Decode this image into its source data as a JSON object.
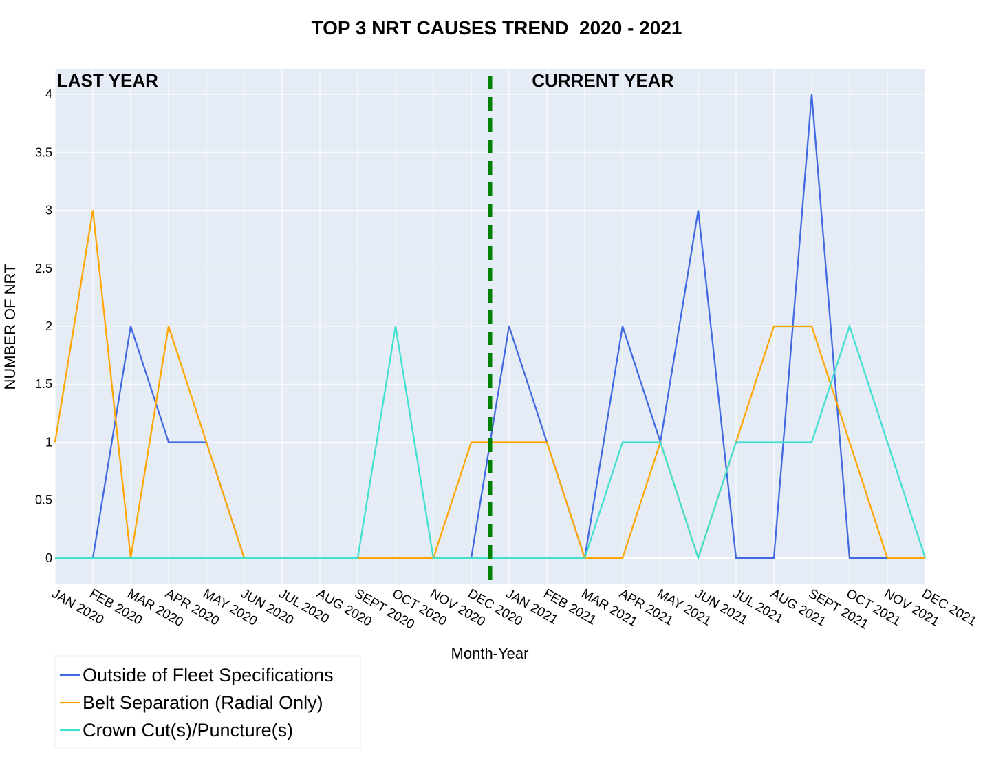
{
  "chart_data": {
    "type": "line",
    "title": "TOP 3 NRT CAUSES TREND  2020 - 2021",
    "xlabel": "Month-Year",
    "ylabel": "NUMBER OF NRT",
    "categories": [
      "JAN 2020",
      "FEB 2020",
      "MAR 2020",
      "APR 2020",
      "MAY 2020",
      "JUN 2020",
      "JUL 2020",
      "AUG 2020",
      "SEPT 2020",
      "OCT 2020",
      "NOV 2020",
      "DEC 2020",
      "JAN 2021",
      "FEB 2021",
      "MAR 2021",
      "APR 2021",
      "MAY 2021",
      "JUN 2021",
      "JUL 2021",
      "AUG 2021",
      "SEPT 2021",
      "OCT 2021",
      "NOV 2021",
      "DEC 2021"
    ],
    "ylim": [
      -0.22,
      4.22
    ],
    "yticks": [
      0,
      0.5,
      1,
      1.5,
      2,
      2.5,
      3,
      3.5,
      4
    ],
    "ytick_labels": [
      "0",
      "0.5",
      "1",
      "1.5",
      "2",
      "2.5",
      "3",
      "3.5",
      "4"
    ],
    "grid": true,
    "legend_position": "bottom-left",
    "series": [
      {
        "name": "Outside of Fleet Specifications",
        "color": "#4169e1",
        "values": [
          0,
          0,
          2,
          1,
          1,
          0,
          0,
          0,
          0,
          0,
          0,
          0,
          2,
          1,
          0,
          2,
          1,
          3,
          0,
          0,
          4,
          0,
          0,
          0
        ]
      },
      {
        "name": "Belt Separation (Radial Only)",
        "color": "#ffa500",
        "values": [
          1,
          3,
          0,
          2,
          1,
          0,
          0,
          0,
          0,
          0,
          0,
          1,
          1,
          1,
          0,
          0,
          1,
          0,
          1,
          2,
          2,
          1,
          0,
          0
        ]
      },
      {
        "name": "Crown Cut(s)/Puncture(s)",
        "color": "#40e0d0",
        "values": [
          0,
          0,
          0,
          0,
          0,
          0,
          0,
          0,
          0,
          2,
          0,
          0,
          0,
          0,
          0,
          1,
          1,
          0,
          1,
          1,
          1,
          2,
          1,
          0
        ]
      }
    ],
    "divider": {
      "x": 11.5,
      "color": "#008000",
      "style": "dashed"
    },
    "annotations": [
      {
        "text": "LAST YEAR",
        "x": 0
      },
      {
        "text": "CURRENT YEAR",
        "x": 12.55
      }
    ],
    "plot_background": "#e5ecf6"
  }
}
